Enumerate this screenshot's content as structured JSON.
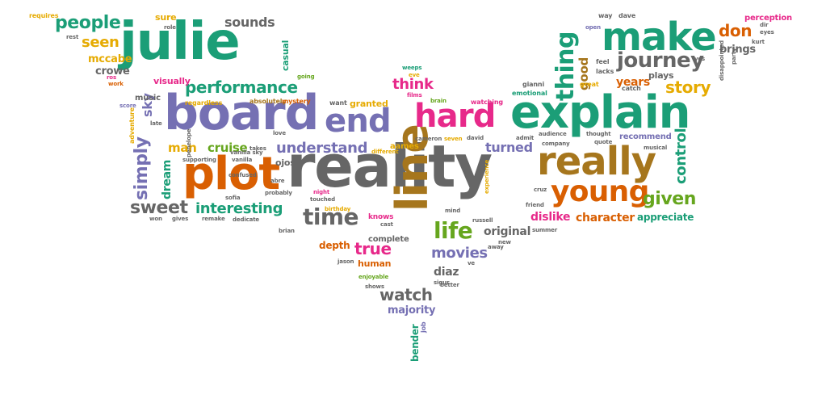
{
  "palette": {
    "teal": "#1b9e77",
    "purple": "#7570b3",
    "pink": "#e7298a",
    "orange": "#d95f02",
    "olive": "#a6761d",
    "green": "#66a61e",
    "gold": "#e6ab02",
    "gray": "#666666"
  },
  "words": [
    {
      "text": "reality",
      "color": "gray"
    },
    {
      "text": "explain",
      "color": "teal"
    },
    {
      "text": "julie",
      "color": "teal"
    },
    {
      "text": "board",
      "color": "purple"
    },
    {
      "text": "really",
      "color": "olive"
    },
    {
      "text": "plot",
      "color": "orange"
    },
    {
      "text": "make",
      "color": "teal"
    },
    {
      "text": "line",
      "color": "olive"
    },
    {
      "text": "end",
      "color": "purple"
    },
    {
      "text": "hard",
      "color": "pink"
    },
    {
      "text": "young",
      "color": "orange"
    },
    {
      "text": "thing",
      "color": "teal"
    },
    {
      "text": "time",
      "color": "gray"
    },
    {
      "text": "life",
      "color": "green"
    },
    {
      "text": "journey",
      "color": "gray"
    },
    {
      "text": "people",
      "color": "teal"
    },
    {
      "text": "performance",
      "color": "teal"
    },
    {
      "text": "understand",
      "color": "purple"
    },
    {
      "text": "interesting",
      "color": "teal"
    },
    {
      "text": "sweet",
      "color": "gray"
    },
    {
      "text": "simply",
      "color": "purple"
    },
    {
      "text": "control",
      "color": "teal"
    },
    {
      "text": "given",
      "color": "green"
    },
    {
      "text": "story",
      "color": "gold"
    },
    {
      "text": "don",
      "color": "orange"
    },
    {
      "text": "watch",
      "color": "gray"
    },
    {
      "text": "movies",
      "color": "purple"
    },
    {
      "text": "true",
      "color": "pink"
    },
    {
      "text": "turned",
      "color": "purple"
    },
    {
      "text": "cruise",
      "color": "green"
    },
    {
      "text": "man",
      "color": "gold"
    },
    {
      "text": "think",
      "color": "pink"
    },
    {
      "text": "seen",
      "color": "gold"
    },
    {
      "text": "sounds",
      "color": "gray"
    },
    {
      "text": "good",
      "color": "olive"
    },
    {
      "text": "dislike",
      "color": "pink"
    },
    {
      "text": "character",
      "color": "orange"
    },
    {
      "text": "appreciate",
      "color": "teal"
    },
    {
      "text": "original",
      "color": "gray"
    },
    {
      "text": "diaz",
      "color": "gray"
    },
    {
      "text": "majority",
      "color": "purple"
    },
    {
      "text": "depth",
      "color": "orange"
    },
    {
      "text": "human",
      "color": "orange"
    },
    {
      "text": "dream",
      "color": "teal"
    },
    {
      "text": "sky",
      "color": "purple"
    },
    {
      "text": "years",
      "color": "orange"
    },
    {
      "text": "brings",
      "color": "gray"
    },
    {
      "text": "perception",
      "color": "pink"
    },
    {
      "text": "recommend",
      "color": "purple"
    },
    {
      "text": "plays",
      "color": "gray"
    },
    {
      "text": "mccabe",
      "color": "gold"
    },
    {
      "text": "crowe",
      "color": "gray"
    },
    {
      "text": "music",
      "color": "gray"
    },
    {
      "text": "visually",
      "color": "pink"
    },
    {
      "text": "casual",
      "color": "teal"
    },
    {
      "text": "granted",
      "color": "gold"
    },
    {
      "text": "aames",
      "color": "gold"
    },
    {
      "text": "knows",
      "color": "pink"
    },
    {
      "text": "complete",
      "color": "gray"
    },
    {
      "text": "bender",
      "color": "teal"
    },
    {
      "text": "ojos",
      "color": "gray"
    },
    {
      "text": "sure",
      "color": "gold"
    },
    {
      "text": "requires",
      "color": "gold"
    },
    {
      "text": "rest",
      "color": "gray"
    },
    {
      "text": "role",
      "color": "gray"
    },
    {
      "text": "ros",
      "color": "pink"
    },
    {
      "text": "work",
      "color": "orange"
    },
    {
      "text": "going",
      "color": "green"
    },
    {
      "text": "absolutely",
      "color": "olive"
    },
    {
      "text": "mystery",
      "color": "orange"
    },
    {
      "text": "regardless",
      "color": "gold"
    },
    {
      "text": "want",
      "color": "gray"
    },
    {
      "text": "weeps",
      "color": "teal"
    },
    {
      "text": "eve",
      "color": "gold"
    },
    {
      "text": "films",
      "color": "pink"
    },
    {
      "text": "brain",
      "color": "green"
    },
    {
      "text": "watching",
      "color": "pink"
    },
    {
      "text": "gianni",
      "color": "gray"
    },
    {
      "text": "emotional",
      "color": "teal"
    },
    {
      "text": "great",
      "color": "gold"
    },
    {
      "text": "feel",
      "color": "gray"
    },
    {
      "text": "lacks",
      "color": "gray"
    },
    {
      "text": "catch",
      "color": "gray"
    },
    {
      "text": "way",
      "color": "gray"
    },
    {
      "text": "dave",
      "color": "gray"
    },
    {
      "text": "open",
      "color": "purple"
    },
    {
      "text": "score",
      "color": "purple"
    },
    {
      "text": "adventure",
      "color": "gold"
    },
    {
      "text": "late",
      "color": "gray"
    },
    {
      "text": "supporting",
      "color": "gray"
    },
    {
      "text": "vanilla",
      "color": "gray"
    },
    {
      "text": "confused",
      "color": "gray"
    },
    {
      "text": "love",
      "color": "gray"
    },
    {
      "text": "takes",
      "color": "gray"
    },
    {
      "text": "different",
      "color": "gold"
    },
    {
      "text": "cameron",
      "color": "gray"
    },
    {
      "text": "seven",
      "color": "gold"
    },
    {
      "text": "david",
      "color": "gray"
    },
    {
      "text": "admit",
      "color": "gray"
    },
    {
      "text": "audience",
      "color": "gray"
    },
    {
      "text": "thought",
      "color": "gray"
    },
    {
      "text": "quote",
      "color": "gray"
    },
    {
      "text": "musical",
      "color": "gray"
    },
    {
      "text": "abre",
      "color": "gray"
    },
    {
      "text": "probably",
      "color": "gray"
    },
    {
      "text": "night",
      "color": "pink"
    },
    {
      "text": "touched",
      "color": "gray"
    },
    {
      "text": "birthday",
      "color": "gold"
    },
    {
      "text": "sofia",
      "color": "gray"
    },
    {
      "text": "gives",
      "color": "gray"
    },
    {
      "text": "won",
      "color": "gray"
    },
    {
      "text": "remake",
      "color": "gray"
    },
    {
      "text": "dedicate",
      "color": "gray"
    },
    {
      "text": "brian",
      "color": "gray"
    },
    {
      "text": "cast",
      "color": "gray"
    },
    {
      "text": "jason",
      "color": "gray"
    },
    {
      "text": "enjoyable",
      "color": "green"
    },
    {
      "text": "shows",
      "color": "gray"
    },
    {
      "text": "sigur",
      "color": "gray"
    },
    {
      "text": "better",
      "color": "gray"
    },
    {
      "text": "job",
      "color": "purple"
    },
    {
      "text": "russell",
      "color": "gray"
    },
    {
      "text": "mind",
      "color": "gray"
    },
    {
      "text": "experience",
      "color": "gold"
    },
    {
      "text": "cruz",
      "color": "gray"
    },
    {
      "text": "friend",
      "color": "gray"
    },
    {
      "text": "company",
      "color": "gray"
    },
    {
      "text": "away",
      "color": "gray"
    },
    {
      "text": "new",
      "color": "gray"
    },
    {
      "text": "yes",
      "color": "gray"
    },
    {
      "text": "dir",
      "color": "gray"
    },
    {
      "text": "eyes",
      "color": "gray"
    },
    {
      "text": "kurt",
      "color": "gray"
    },
    {
      "text": "party",
      "color": "gray"
    },
    {
      "text": "disappointed",
      "color": "gray"
    },
    {
      "text": "penelope",
      "color": "gray"
    },
    {
      "text": "vanilla sky",
      "color": "gray"
    },
    {
      "text": "summer",
      "color": "gray"
    },
    {
      "text": "ve",
      "color": "gray"
    }
  ]
}
